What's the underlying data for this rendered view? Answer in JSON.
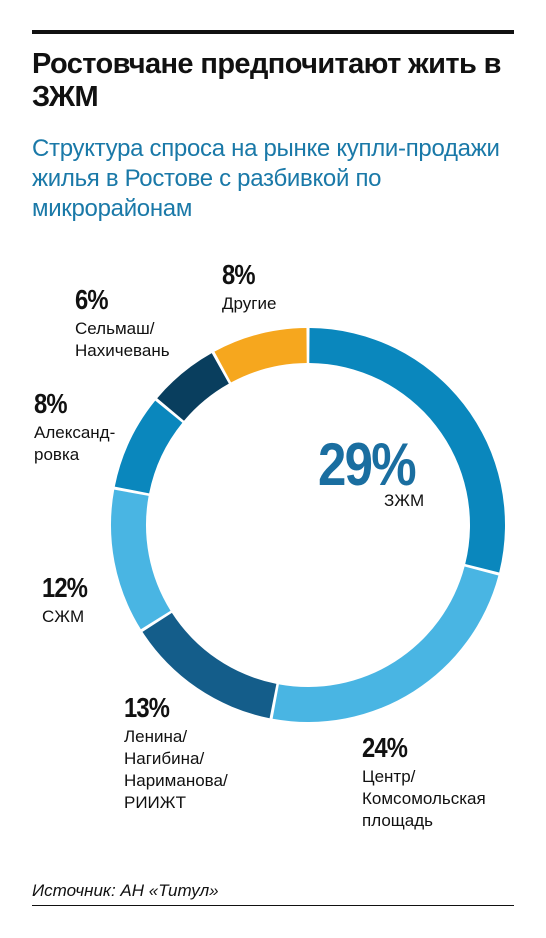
{
  "title": "Ростовчане предпочитают жить в ЗЖМ",
  "subtitle": "Структура спроса на рынке купли-продажи жилья в Ростове с разбивкой по микрорайонам",
  "source": "Источник: АН «Титул»",
  "chart_data": {
    "type": "pie",
    "donut": true,
    "legend": "none",
    "slices": [
      {
        "label_lines": [
          "ЗЖМ"
        ],
        "value": 29,
        "value_label": "29%",
        "color": "#0a87bd"
      },
      {
        "label_lines": [
          "Центр/",
          "Комсомольская",
          "площадь"
        ],
        "value": 24,
        "value_label": "24%",
        "color": "#49b5e3"
      },
      {
        "label_lines": [
          "Ленина/",
          "Нагибина/",
          "Нариманова/",
          "РИИЖТ"
        ],
        "value": 13,
        "value_label": "13%",
        "color": "#145d8a"
      },
      {
        "label_lines": [
          "СЖМ"
        ],
        "value": 12,
        "value_label": "12%",
        "color": "#49b5e3"
      },
      {
        "label_lines": [
          "Александ-",
          "ровка"
        ],
        "value": 8,
        "value_label": "8%",
        "color": "#0a87bd"
      },
      {
        "label_lines": [
          "Сельмаш/",
          "Нахичевань"
        ],
        "value": 6,
        "value_label": "6%",
        "color": "#093e5e"
      },
      {
        "label_lines": [
          "Другие"
        ],
        "value": 8,
        "value_label": "8%",
        "color": "#f6a71e"
      }
    ]
  }
}
